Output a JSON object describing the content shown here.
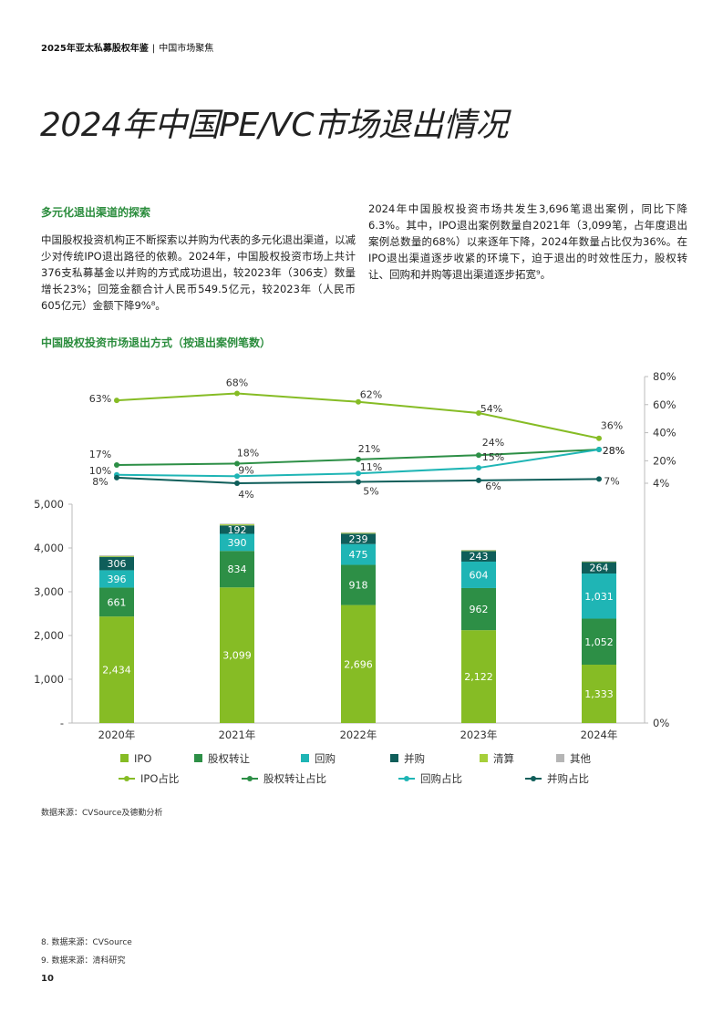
{
  "header": {
    "report": "2025年亚太私募股权年鉴",
    "separator": "|",
    "section": "中国市场聚焦"
  },
  "title": "2024年中国PE/VC市场退出情况",
  "left_column": {
    "subheading": "多元化退出渠道的探索",
    "paragraph": "中国股权投资机构正不断探索以并购为代表的多元化退出渠道，以减少对传统IPO退出路径的依赖。2024年，中国股权投资市场上共计376支私募基金以并购的方式成功退出，较2023年（306支）数量增长23%；回笼金额合计人民币549.5亿元，较2023年（人民币605亿元）金额下降9%⁸。"
  },
  "right_column": {
    "paragraph": "2024年中国股权投资市场共发生3,696笔退出案例，同比下降6.3%。其中，IPO退出案例数量自2021年（3,099笔，占年度退出案例总数量的68%）以来逐年下降，2024年数量占比仅为36%。在IPO退出渠道逐步收紧的环境下，迫于退出的时效性压力，股权转让、回购和并购等退出渠道逐步拓宽⁹。"
  },
  "chart_data": {
    "type": "bar",
    "title": "中国股权投资市场退出方式（按退出案例笔数）",
    "categories": [
      "2020年",
      "2021年",
      "2022年",
      "2023年",
      "2024年"
    ],
    "series": [
      {
        "name": "IPO",
        "values": [
          2434,
          3099,
          2696,
          2122,
          1333
        ],
        "labels": [
          "2,434",
          "3,099",
          "2,696",
          "2,122",
          "1,333"
        ],
        "color": "#86bc25"
      },
      {
        "name": "股权转让",
        "values": [
          661,
          834,
          918,
          962,
          1052
        ],
        "labels": [
          "661",
          "834",
          "918",
          "962",
          "1,052"
        ],
        "color": "#2d8f46"
      },
      {
        "name": "回购",
        "values": [
          396,
          390,
          475,
          604,
          1031
        ],
        "labels": [
          "396",
          "390",
          "475",
          "604",
          "1,031"
        ],
        "color": "#1fb5b5"
      },
      {
        "name": "并购",
        "values": [
          306,
          192,
          239,
          243,
          264
        ],
        "labels": [
          "306",
          "192",
          "239",
          "243",
          "264"
        ],
        "color": "#0f5e5a"
      },
      {
        "name": "清算",
        "values": [
          20,
          25,
          18,
          15,
          10
        ],
        "color": "#a6cf3a"
      },
      {
        "name": "其他",
        "values": [
          15,
          15,
          12,
          10,
          8
        ],
        "color": "#b5b5b5"
      }
    ],
    "line_series": [
      {
        "name": "IPO占比",
        "values": [
          63,
          68,
          62,
          54,
          36
        ],
        "labels": [
          "63%",
          "68%",
          "62%",
          "54%",
          "36%"
        ],
        "color": "#86bc25"
      },
      {
        "name": "股权转让占比",
        "values": [
          17,
          18,
          21,
          24,
          28
        ],
        "labels": [
          "17%",
          "18%",
          "21%",
          "24%",
          "28%"
        ],
        "color": "#2d8f46"
      },
      {
        "name": "回购占比",
        "values": [
          10,
          9,
          11,
          15,
          28
        ],
        "labels": [
          "10%",
          "9%",
          "11%",
          "15%",
          "28%"
        ],
        "color": "#1fb5b5"
      },
      {
        "name": "并购占比",
        "values": [
          8,
          4,
          5,
          6,
          7
        ],
        "labels": [
          "8%",
          "4%",
          "5%",
          "6%",
          "7%"
        ],
        "color": "#0f5e5a"
      }
    ],
    "left_axis": {
      "ticks": [
        "-",
        "1,000",
        "2,000",
        "3,000",
        "4,000",
        "5,000"
      ],
      "ylim": [
        0,
        5000
      ]
    },
    "right_axis": {
      "ticks": [
        "0%",
        "4%",
        "20%",
        "40%",
        "60%",
        "80%"
      ]
    },
    "legend_position": "bottom"
  },
  "source": "数据来源：CVSource及德勤分析",
  "footnotes": [
    "8. 数据来源：CVSource",
    "9. 数据来源：清科研究"
  ],
  "page_number": "10"
}
